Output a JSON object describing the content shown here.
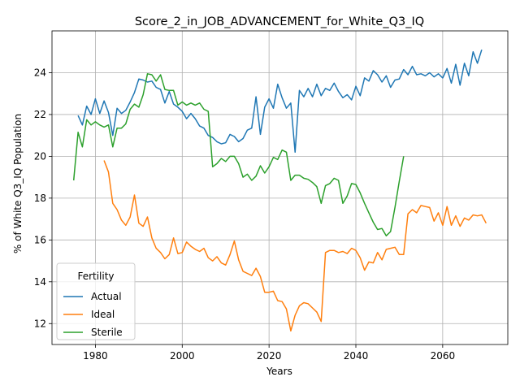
{
  "chart_data": {
    "type": "line",
    "title": "Score_2_in_JOB_ADVANCEMENT_for_White_Q3_IQ",
    "xlabel": "Years",
    "ylabel": "% of White Q3_IQ Population",
    "xlim": [
      1970,
      2075
    ],
    "ylim": [
      11.0,
      26.0
    ],
    "x_ticks": [
      1980,
      2000,
      2020,
      2040,
      2060
    ],
    "y_ticks": [
      12,
      14,
      16,
      18,
      20,
      22,
      24
    ],
    "grid": true,
    "legend": {
      "title": "Fertility",
      "placement": "bottom-left"
    },
    "series": [
      {
        "name": "Actual",
        "color": "#1f77b4",
        "x_start": 1976,
        "values": [
          21.95,
          21.5,
          22.4,
          22.0,
          22.75,
          22.05,
          22.65,
          22.1,
          21.0,
          22.3,
          22.05,
          22.2,
          22.6,
          23.05,
          23.7,
          23.65,
          23.55,
          23.6,
          23.3,
          23.2,
          22.55,
          23.1,
          22.5,
          22.35,
          22.15,
          21.8,
          22.05,
          21.8,
          21.45,
          21.35,
          21.0,
          20.9,
          20.7,
          20.6,
          20.65,
          21.05,
          20.95,
          20.7,
          20.85,
          21.25,
          21.35,
          22.85,
          21.05,
          22.35,
          22.75,
          22.3,
          23.45,
          22.8,
          22.3,
          22.55,
          20.2,
          23.15,
          22.85,
          23.25,
          22.85,
          23.45,
          22.9,
          23.25,
          23.15,
          23.5,
          23.1,
          22.8,
          22.95,
          22.7,
          23.35,
          22.9,
          23.75,
          23.6,
          24.1,
          23.9,
          23.55,
          23.85,
          23.3,
          23.65,
          23.7,
          24.15,
          23.9,
          24.3,
          23.9,
          23.95,
          23.85,
          24.0,
          23.8,
          23.95,
          23.75,
          24.2,
          23.5,
          24.4,
          23.4,
          24.45,
          23.85,
          25.0,
          24.45,
          25.1
        ]
      },
      {
        "name": "Ideal",
        "color": "#ff7f0e",
        "x_start": 1982,
        "values": [
          19.8,
          19.25,
          17.75,
          17.45,
          16.95,
          16.7,
          17.1,
          18.15,
          16.8,
          16.65,
          17.1,
          16.1,
          15.6,
          15.4,
          15.1,
          15.3,
          16.1,
          15.35,
          15.4,
          15.9,
          15.7,
          15.55,
          15.45,
          15.6,
          15.15,
          15.0,
          15.2,
          14.9,
          14.8,
          15.3,
          15.95,
          15.05,
          14.5,
          14.4,
          14.3,
          14.65,
          14.25,
          13.5,
          13.5,
          13.55,
          13.1,
          13.05,
          12.7,
          11.65,
          12.4,
          12.85,
          13.0,
          12.95,
          12.75,
          12.55,
          12.1,
          15.4,
          15.5,
          15.5,
          15.4,
          15.45,
          15.35,
          15.6,
          15.5,
          15.15,
          14.55,
          14.95,
          14.9,
          15.4,
          15.05,
          15.55,
          15.6,
          15.65,
          15.3,
          15.3,
          17.25,
          17.45,
          17.3,
          17.65,
          17.6,
          17.55,
          16.9,
          17.3,
          16.7,
          17.6,
          16.7,
          17.15,
          16.65,
          17.05,
          16.95,
          17.2,
          17.15,
          17.2,
          16.8
        ]
      },
      {
        "name": "Sterile",
        "color": "#2ca02c",
        "x_start": 1975,
        "values": [
          18.85,
          21.15,
          20.45,
          21.75,
          21.5,
          21.65,
          21.5,
          21.4,
          21.5,
          20.45,
          21.35,
          21.35,
          21.55,
          22.25,
          22.5,
          22.35,
          22.95,
          23.95,
          23.9,
          23.6,
          23.9,
          23.2,
          23.15,
          23.15,
          22.45,
          22.6,
          22.45,
          22.55,
          22.45,
          22.55,
          22.25,
          22.15,
          19.5,
          19.65,
          19.9,
          19.75,
          20.0,
          20.0,
          19.65,
          19.0,
          19.15,
          18.85,
          19.05,
          19.55,
          19.2,
          19.5,
          19.95,
          19.85,
          20.3,
          20.2,
          18.85,
          19.1,
          19.1,
          18.95,
          18.9,
          18.75,
          18.55,
          17.75,
          18.6,
          18.7,
          18.95,
          18.85,
          17.75,
          18.1,
          18.7,
          18.65,
          18.25,
          17.75,
          17.3,
          16.85,
          16.5,
          16.55,
          16.2,
          16.4,
          17.55,
          18.8,
          20.0
        ]
      }
    ]
  }
}
